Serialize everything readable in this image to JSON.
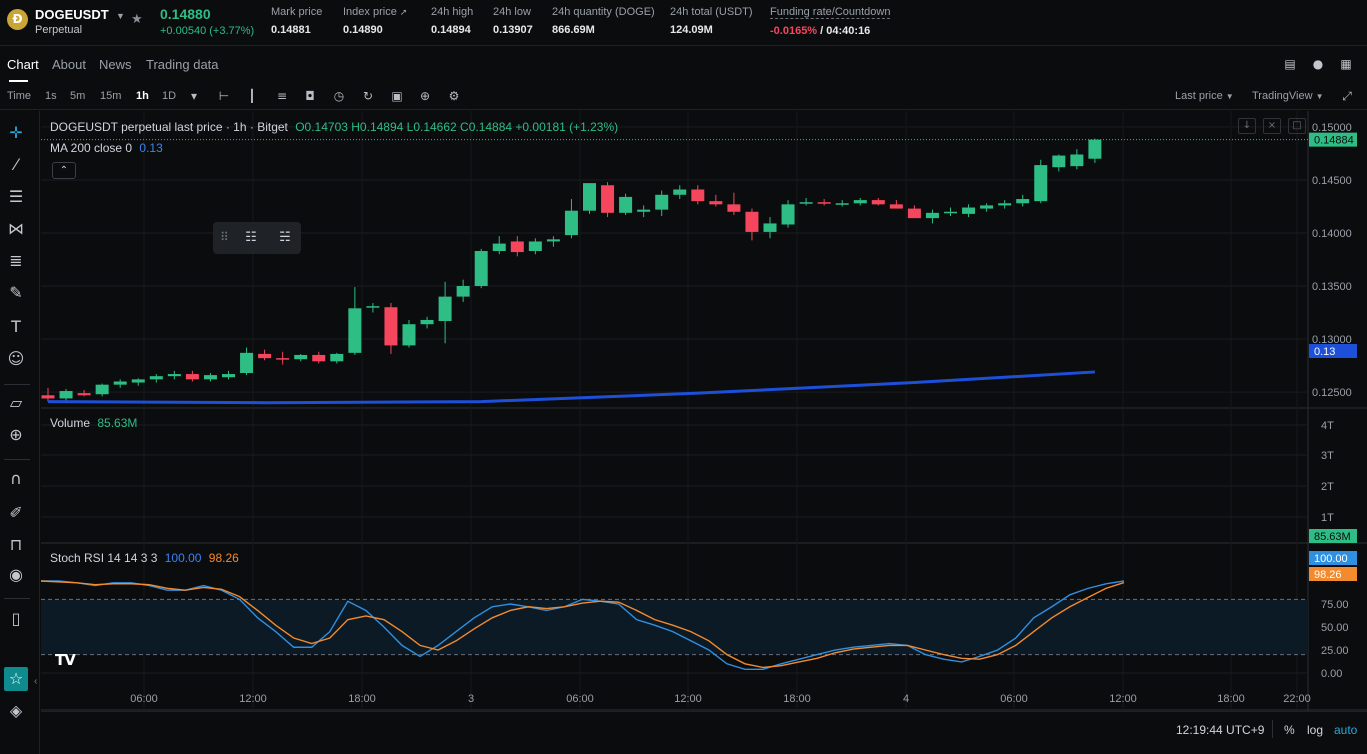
{
  "ticker": {
    "symbol": "DOGEUSDT",
    "contract": "Perpetual",
    "coin_glyph": "Ð",
    "last_price": "0.14880",
    "change": "+0.00540",
    "change_pct": "(+3.77%)",
    "stats": [
      {
        "label": "Mark price",
        "value": "0.14881"
      },
      {
        "label": "Index price",
        "value": "0.14890"
      },
      {
        "label": "24h high",
        "value": "0.14894"
      },
      {
        "label": "24h low",
        "value": "0.13907"
      },
      {
        "label": "24h quantity (DOGE)",
        "value": "866.69M"
      },
      {
        "label": "24h total (USDT)",
        "value": "124.09M"
      }
    ],
    "funding": {
      "label": "Funding rate/Countdown",
      "rate": "-0.0165%",
      "countdown": "/ 04:40:16"
    },
    "colors": {
      "up": "#2ebd85",
      "down": "#f6465d",
      "ma": "#1e4fd8",
      "stoch_k": "#2f8fe0",
      "stoch_d": "#f28a2e"
    }
  },
  "tabs": {
    "items": [
      "Chart",
      "About",
      "News",
      "Trading data"
    ],
    "active": "Chart"
  },
  "toolbar": {
    "time_label": "Time",
    "intervals": [
      "1s",
      "5m",
      "15m",
      "1h",
      "1D"
    ],
    "active_interval": "1h",
    "price_mode": "Last price",
    "view_mode": "TradingView",
    "icons": [
      "measure-icon",
      "candles-icon",
      "indicators-icon",
      "camera-icon",
      "alarm-icon",
      "replay-icon",
      "calendar-icon",
      "add-icon",
      "settings-icon"
    ]
  },
  "legend": {
    "title": "DOGEUSDT perpetual last price · 1h · Bitget",
    "ohlc": "O0.14703 H0.14894 L0.14662 C0.14884 +0.00181 (+1.23%)",
    "ma_label": "MA 200 close 0",
    "ma_value": "0.13",
    "volume_label": "Volume",
    "volume_value": "85.63M",
    "stoch_label": "Stoch RSI 14 14 3 3",
    "stoch_k_value": "100.00",
    "stoch_d_value": "98.26"
  },
  "axes": {
    "price_ticks": [
      "0.15000",
      "0.14500",
      "0.14000",
      "0.13500",
      "0.13000",
      "0.12500"
    ],
    "last_price_tag": "0.14884",
    "ma_tag": "0.13",
    "volume_ticks": [
      "4T",
      "3T",
      "2T",
      "1T"
    ],
    "volume_tag": "85.63M",
    "stoch_ticks": [
      "75.00",
      "50.00",
      "25.00",
      "0.00"
    ],
    "stoch_k_tag": "100.00",
    "stoch_d_tag": "98.26",
    "time_ticks": [
      "06:00",
      "12:00",
      "18:00",
      "3",
      "06:00",
      "12:00",
      "18:00",
      "4",
      "06:00",
      "12:00",
      "18:00",
      "22:00"
    ]
  },
  "bottom": {
    "clock": "12:19:44 UTC+9",
    "percent": "%",
    "log": "log",
    "auto": "auto"
  },
  "chart_data": [
    {
      "type": "candlestick",
      "title": "DOGEUSDT perpetual last price · 1h · Bitget",
      "ylim": [
        0.1235,
        0.1515
      ],
      "candles": [
        [
          0.1247,
          0.1254,
          0.1241,
          0.1244
        ],
        [
          0.1244,
          0.1253,
          0.1242,
          0.1251
        ],
        [
          0.1249,
          0.1252,
          0.1246,
          0.1247
        ],
        [
          0.1248,
          0.1258,
          0.1246,
          0.1257
        ],
        [
          0.1257,
          0.1262,
          0.1254,
          0.126
        ],
        [
          0.1259,
          0.1263,
          0.1256,
          0.1262
        ],
        [
          0.1262,
          0.1267,
          0.1259,
          0.1265
        ],
        [
          0.1265,
          0.127,
          0.1262,
          0.1267
        ],
        [
          0.1267,
          0.127,
          0.126,
          0.1262
        ],
        [
          0.1262,
          0.1268,
          0.126,
          0.1266
        ],
        [
          0.1264,
          0.127,
          0.1262,
          0.1267
        ],
        [
          0.1268,
          0.1292,
          0.1266,
          0.1287
        ],
        [
          0.1286,
          0.129,
          0.128,
          0.1282
        ],
        [
          0.1282,
          0.1288,
          0.1276,
          0.1281
        ],
        [
          0.1281,
          0.1286,
          0.1279,
          0.1285
        ],
        [
          0.1285,
          0.1288,
          0.1277,
          0.1279
        ],
        [
          0.1279,
          0.1287,
          0.1277,
          0.1286
        ],
        [
          0.1287,
          0.1349,
          0.1285,
          0.1329
        ],
        [
          0.133,
          0.1334,
          0.1325,
          0.1331
        ],
        [
          0.133,
          0.1334,
          0.1286,
          0.1294
        ],
        [
          0.1294,
          0.1318,
          0.1292,
          0.1314
        ],
        [
          0.1314,
          0.1321,
          0.131,
          0.1318
        ],
        [
          0.1317,
          0.1354,
          0.1296,
          0.134
        ],
        [
          0.134,
          0.1356,
          0.1335,
          0.135
        ],
        [
          0.135,
          0.1385,
          0.1348,
          0.1383
        ],
        [
          0.1383,
          0.1397,
          0.138,
          0.139
        ],
        [
          0.1392,
          0.1397,
          0.1378,
          0.1382
        ],
        [
          0.1383,
          0.1395,
          0.138,
          0.1392
        ],
        [
          0.1392,
          0.1397,
          0.1387,
          0.1394
        ],
        [
          0.1398,
          0.1432,
          0.1395,
          0.1421
        ],
        [
          0.1421,
          0.1447,
          0.1418,
          0.1447
        ],
        [
          0.1445,
          0.1448,
          0.1415,
          0.1419
        ],
        [
          0.1419,
          0.1437,
          0.1417,
          0.1434
        ],
        [
          0.142,
          0.1426,
          0.1415,
          0.1422
        ],
        [
          0.1422,
          0.144,
          0.1416,
          0.1436
        ],
        [
          0.1436,
          0.1445,
          0.1432,
          0.1441
        ],
        [
          0.1441,
          0.1445,
          0.1427,
          0.143
        ],
        [
          0.143,
          0.1436,
          0.1425,
          0.1427
        ],
        [
          0.1427,
          0.1438,
          0.1417,
          0.142
        ],
        [
          0.142,
          0.1423,
          0.1393,
          0.1401
        ],
        [
          0.1401,
          0.1415,
          0.1395,
          0.1409
        ],
        [
          0.1408,
          0.1431,
          0.1405,
          0.1427
        ],
        [
          0.1428,
          0.1433,
          0.1426,
          0.1429
        ],
        [
          0.1429,
          0.1432,
          0.1426,
          0.1428
        ],
        [
          0.1427,
          0.1431,
          0.1425,
          0.1428
        ],
        [
          0.1428,
          0.1433,
          0.1426,
          0.1431
        ],
        [
          0.1431,
          0.1433,
          0.1426,
          0.1427
        ],
        [
          0.1427,
          0.1431,
          0.1425,
          0.1423
        ],
        [
          0.1423,
          0.1426,
          0.1414,
          0.1414
        ],
        [
          0.1414,
          0.1422,
          0.1409,
          0.1419
        ],
        [
          0.1419,
          0.1424,
          0.1416,
          0.142
        ],
        [
          0.1418,
          0.1427,
          0.1415,
          0.1424
        ],
        [
          0.1423,
          0.1428,
          0.142,
          0.1426
        ],
        [
          0.1426,
          0.1431,
          0.1423,
          0.1428
        ],
        [
          0.1428,
          0.1436,
          0.1425,
          0.1432
        ],
        [
          0.143,
          0.1469,
          0.1428,
          0.1464
        ],
        [
          0.1462,
          0.1474,
          0.1458,
          0.1473
        ],
        [
          0.1463,
          0.1479,
          0.146,
          0.1474
        ],
        [
          0.147,
          0.1489,
          0.1466,
          0.1488
        ]
      ]
    },
    {
      "type": "line",
      "name": "MA 200 close 0",
      "x": [
        0,
        12,
        24,
        36,
        48,
        58
      ],
      "values": [
        0.1241,
        0.124,
        0.1241,
        0.1249,
        0.1259,
        0.1269
      ]
    },
    {
      "type": "line",
      "title": "Stoch RSI 14 14 3 3",
      "ylim": [
        0,
        100
      ],
      "series": [
        {
          "name": "K",
          "values": [
            100,
            100,
            98,
            95,
            98,
            98,
            95,
            90,
            90,
            95,
            90,
            80,
            60,
            45,
            28,
            28,
            45,
            78,
            68,
            50,
            30,
            18,
            30,
            45,
            60,
            72,
            75,
            72,
            68,
            72,
            80,
            78,
            75,
            58,
            52,
            45,
            35,
            25,
            10,
            4,
            4,
            10,
            15,
            20,
            25,
            28,
            30,
            32,
            30,
            20,
            15,
            12,
            18,
            25,
            38,
            60,
            72,
            85,
            92,
            97,
            100
          ]
        },
        {
          "name": "D",
          "values": [
            100,
            99,
            98,
            96,
            97,
            97,
            96,
            92,
            90,
            93,
            91,
            83,
            68,
            52,
            38,
            32,
            38,
            58,
            62,
            58,
            45,
            30,
            25,
            35,
            48,
            60,
            68,
            72,
            70,
            72,
            76,
            78,
            77,
            68,
            58,
            52,
            45,
            35,
            20,
            10,
            6,
            8,
            12,
            16,
            22,
            26,
            28,
            30,
            30,
            25,
            20,
            16,
            15,
            20,
            30,
            45,
            60,
            72,
            82,
            92,
            98.26
          ]
        }
      ]
    }
  ]
}
